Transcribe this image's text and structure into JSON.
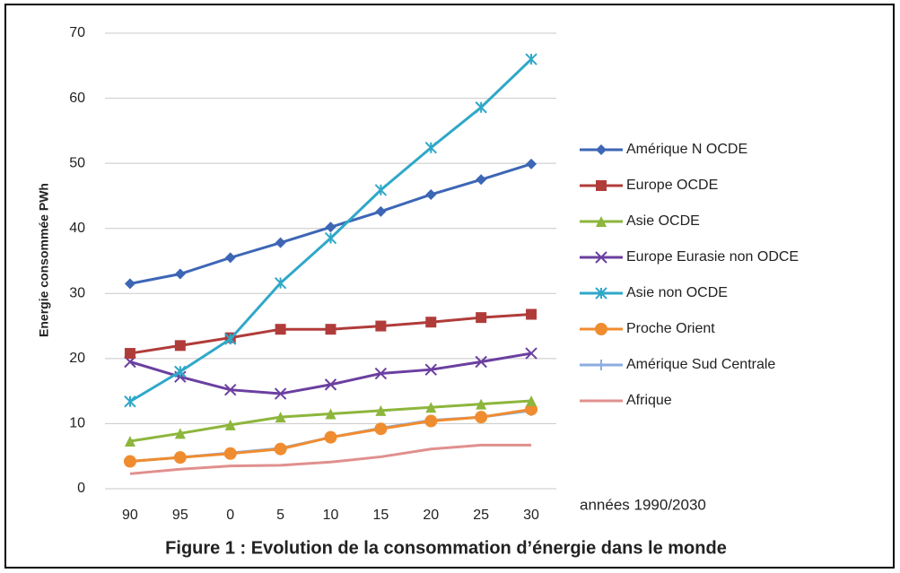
{
  "chart_data": {
    "type": "line",
    "ylabel": "Energie consommée  PWh",
    "annotation": "années 1990/2030",
    "caption": "Figure 1 : Evolution de la consommation  d’énergie dans le monde",
    "categories": [
      "90",
      "95",
      "0",
      "5",
      "10",
      "15",
      "20",
      "25",
      "30"
    ],
    "ylim": [
      0,
      70
    ],
    "yticks": [
      0,
      10,
      20,
      30,
      40,
      50,
      60,
      70
    ],
    "grid": true,
    "legend": "right",
    "series": [
      {
        "name": "Amérique N OCDE",
        "color": "#3d66b5",
        "marker": "diamond",
        "values": [
          31.5,
          33,
          35.5,
          37.8,
          40.2,
          42.6,
          45.2,
          47.5,
          49.9
        ]
      },
      {
        "name": "Europe OCDE",
        "color": "#b03c3a",
        "marker": "square",
        "values": [
          20.8,
          22,
          23.2,
          24.5,
          24.5,
          25,
          25.6,
          26.3,
          26.8
        ]
      },
      {
        "name": "Asie OCDE",
        "color": "#8db63c",
        "marker": "triangle",
        "values": [
          7.3,
          8.5,
          9.8,
          11,
          11.5,
          12,
          12.5,
          13,
          13.5
        ]
      },
      {
        "name": "Europe Eurasie non ODCE",
        "color": "#6b3fa0",
        "marker": "x",
        "values": [
          19.5,
          17.2,
          15.2,
          14.6,
          16,
          17.7,
          18.3,
          19.5,
          20.8
        ]
      },
      {
        "name": "Asie non OCDE",
        "color": "#2fa8c8",
        "marker": "star",
        "values": [
          13.4,
          18,
          23,
          31.6,
          38.5,
          45.9,
          52.4,
          58.6,
          66
        ]
      },
      {
        "name": "Proche Orient",
        "color": "#f08c30",
        "marker": "circle",
        "values": [
          4.2,
          4.8,
          5.4,
          6.1,
          7.9,
          9.2,
          10.4,
          11,
          12.2
        ]
      },
      {
        "name": "Amérique Sud Centrale",
        "color": "#8aaee0",
        "marker": "plus",
        "values": [
          4.2,
          4.8,
          5.5,
          6.2,
          7.9,
          9.3,
          10.5,
          11,
          12
        ]
      },
      {
        "name": "Afrique",
        "color": "#e0908e",
        "marker": "none",
        "values": [
          2.3,
          3,
          3.5,
          3.6,
          4.1,
          4.9,
          6.1,
          6.7,
          6.7
        ]
      }
    ]
  }
}
